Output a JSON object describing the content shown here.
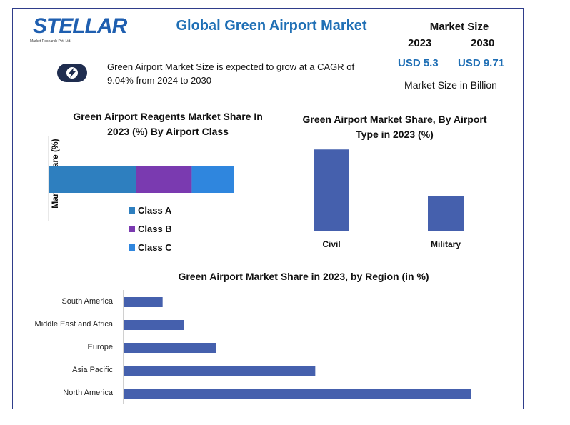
{
  "logo": {
    "name": "STELLAR",
    "tagline": "Market Research Pvt. Ltd."
  },
  "title": "Global Green Airport Market",
  "market_size": {
    "heading": "Market Size",
    "year_start": "2023",
    "year_end": "2030",
    "value_start": "USD 5.3",
    "value_end": "USD 9.71",
    "unit": "Market Size in Billion"
  },
  "description": "Green Airport Market Size is expected to grow at a CAGR of 9.04% from 2024 to 2030",
  "colors": {
    "accent": "#1f6fb5",
    "bar": "#4560ad",
    "class_a": "#2e7fbf",
    "class_b": "#7a3ab0",
    "class_c": "#2f86de"
  },
  "chart_data": [
    {
      "type": "bar",
      "orientation": "horizontal-stacked",
      "title": "Green Airport Reagents Market Share In 2023 (%) By Airport Class",
      "ylabel": "Market Share (%)",
      "legend_position": "bottom",
      "series": [
        {
          "name": "Class A",
          "values": [
            47
          ]
        },
        {
          "name": "Class B",
          "values": [
            30
          ]
        },
        {
          "name": "Class C",
          "values": [
            23
          ]
        }
      ]
    },
    {
      "type": "bar",
      "title": "Green Airport Market Share, By Airport Type in 2023 (%)",
      "categories": [
        "Civil",
        "Military"
      ],
      "values": [
        70,
        30
      ],
      "ylim": [
        0,
        80
      ]
    },
    {
      "type": "bar",
      "orientation": "horizontal",
      "title": "Green Airport Market Share in 2023, by Region (in %)",
      "categories": [
        "South America",
        "Middle East and Africa",
        "Europe",
        "Asia Pacific",
        "North America"
      ],
      "values": [
        5.5,
        8.5,
        13,
        27,
        49
      ],
      "xlim": [
        0,
        50
      ]
    }
  ]
}
